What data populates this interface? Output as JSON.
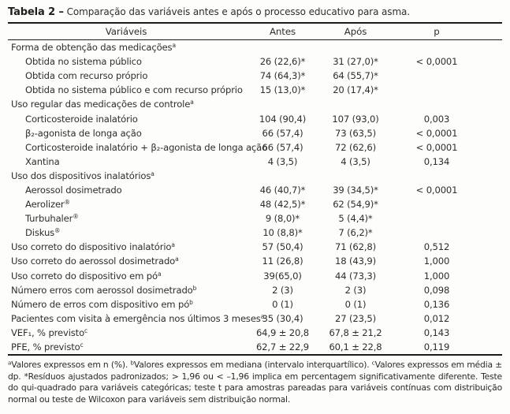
{
  "title": {
    "label": "Tabela 2 –",
    "text": "Comparação das variáveis antes e após o processo educativo para asma."
  },
  "table": {
    "columns": [
      "Variáveis",
      "Antes",
      "Após",
      "p"
    ],
    "rows": [
      {
        "label": "Forma de obtenção das medicações",
        "sup": "a",
        "indent": false,
        "antes": "",
        "apos": "",
        "p": ""
      },
      {
        "label": "Obtida no sistema público",
        "sup": "",
        "indent": true,
        "antes": "26 (22,6)*",
        "apos": "31 (27,0)*",
        "p": "< 0,0001"
      },
      {
        "label": "Obtida com recurso próprio",
        "sup": "",
        "indent": true,
        "antes": "74 (64,3)*",
        "apos": "64 (55,7)*",
        "p": ""
      },
      {
        "label": "Obtida no sistema público e com recurso próprio",
        "sup": "",
        "indent": true,
        "antes": "15 (13,0)*",
        "apos": "20 (17,4)*",
        "p": ""
      },
      {
        "label": "Uso regular das medicações de controle",
        "sup": "a",
        "indent": false,
        "antes": "",
        "apos": "",
        "p": ""
      },
      {
        "label": "Corticosteroide inalatório",
        "sup": "",
        "indent": true,
        "antes": "104 (90,4)",
        "apos": "107 (93,0)",
        "p": "0,003"
      },
      {
        "label": "β₂-agonista de longa ação",
        "sup": "",
        "indent": true,
        "antes": "66 (57,4)",
        "apos": "73 (63,5)",
        "p": "< 0,0001"
      },
      {
        "label": "Corticosteroide inalatório + β₂-agonista de longa ação",
        "sup": "",
        "indent": true,
        "antes": "66 (57,4)",
        "apos": "72 (62,6)",
        "p": "< 0,0001"
      },
      {
        "label": "Xantina",
        "sup": "",
        "indent": true,
        "antes": "4 (3,5)",
        "apos": "4 (3,5)",
        "p": "0,134"
      },
      {
        "label": "Uso dos dispositivos inalatórios",
        "sup": "a",
        "indent": false,
        "antes": "",
        "apos": "",
        "p": ""
      },
      {
        "label": "Aerossol dosimetrado",
        "sup": "",
        "indent": true,
        "antes": "46 (40,7)*",
        "apos": "39 (34,5)*",
        "p": "< 0,0001"
      },
      {
        "label": "Aerolizer",
        "sup": "®",
        "indent": true,
        "antes": "48 (42,5)*",
        "apos": "62 (54,9)*",
        "p": ""
      },
      {
        "label": "Turbuhaler",
        "sup": "®",
        "indent": true,
        "antes": "9 (8,0)*",
        "apos": "5 (4,4)*",
        "p": ""
      },
      {
        "label": "Diskus",
        "sup": "®",
        "indent": true,
        "antes": "10 (8,8)*",
        "apos": "7 (6,2)*",
        "p": ""
      },
      {
        "label": "Uso correto do dispositivo inalatório",
        "sup": "a",
        "indent": false,
        "antes": "57 (50,4)",
        "apos": "71 (62,8)",
        "p": "0,512"
      },
      {
        "label": "Uso correto do aerossol dosimetrado",
        "sup": "a",
        "indent": false,
        "antes": "11 (26,8)",
        "apos": "18 (43,9)",
        "p": "1,000"
      },
      {
        "label": "Uso correto do dispositivo em pó",
        "sup": "a",
        "indent": false,
        "antes": "39(65,0)",
        "apos": "44 (73,3)",
        "p": "1,000"
      },
      {
        "label": "Número erros com aerossol dosimetrado",
        "sup": "b",
        "indent": false,
        "antes": "2 (3)",
        "apos": "2 (3)",
        "p": "0,098"
      },
      {
        "label": "Número de erros com dispositivo em pó",
        "sup": "b",
        "indent": false,
        "antes": "0 (1)",
        "apos": "0 (1)",
        "p": "0,136"
      },
      {
        "label": "Pacientes com visita à emergência nos últimos 3 meses",
        "sup": "a",
        "indent": false,
        "antes": "35 (30,4)",
        "apos": "27 (23,5)",
        "p": "0,012"
      },
      {
        "label": "VEF₁, % previsto",
        "sup": "c",
        "indent": false,
        "antes": "64,9 ± 20,8",
        "apos": "67,8 ± 21,2",
        "p": "0,143"
      },
      {
        "label": "PFE, % previsto",
        "sup": "c",
        "indent": false,
        "antes": "62,7 ± 22,9",
        "apos": "60,1 ± 22,8",
        "p": "0,119"
      }
    ]
  },
  "footnote": {
    "segments": [
      {
        "sup": "a",
        "text": "Valores expressos em n (%). "
      },
      {
        "sup": "b",
        "text": "Valores expressos em mediana (intervalo interquartílico). "
      },
      {
        "sup": "c",
        "text": "Valores expressos em média ± dp. "
      },
      {
        "sup": "",
        "text": "*Resíduos ajustados padronizados; > 1,96 ou < –1,96 implica em percentagem significativamente diferente. Teste do qui-quadrado para variáveis categóricas; teste t para amostras pareadas para variáveis contínuas com distribuição normal ou teste de Wilcoxon para variáveis sem distribuição normal."
      }
    ]
  }
}
